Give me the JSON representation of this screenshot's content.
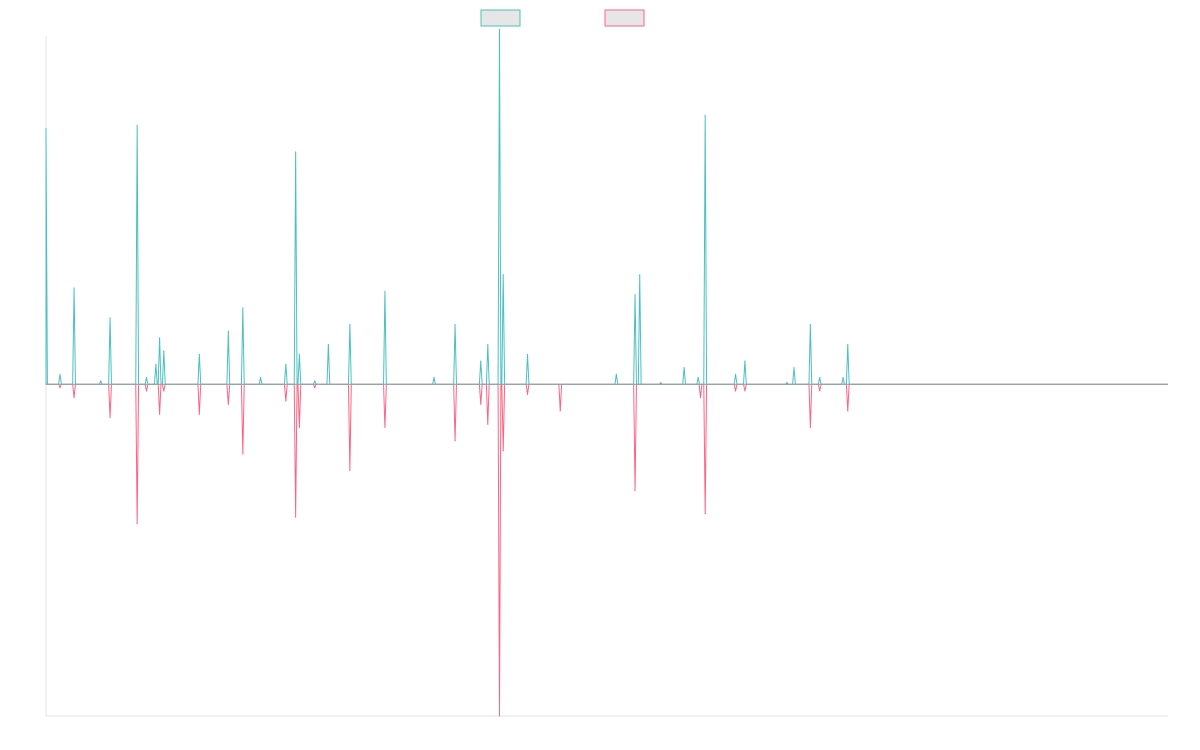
{
  "chart_data": {
    "type": "line",
    "legend": {
      "placement": "top-center",
      "entries": [
        "",
        ""
      ]
    },
    "grid": false,
    "x_range": [
      0,
      240
    ],
    "ylim": [
      -1,
      1.05
    ],
    "colors": {
      "series_a": "#4bc0c0",
      "series_b": "#ff6384",
      "baseline": "#8aa7b1",
      "legend_fill": "#e6e6e6"
    },
    "series": [
      {
        "color": "#4bc0c0",
        "spikes": [
          {
            "x": 0.0,
            "y": 0.77
          },
          {
            "x": 3.0,
            "y": 0.03
          },
          {
            "x": 6.0,
            "y": 0.29
          },
          {
            "x": 11.7,
            "y": 0.01
          },
          {
            "x": 13.7,
            "y": 0.2
          },
          {
            "x": 19.5,
            "y": 0.78
          },
          {
            "x": 21.5,
            "y": 0.02
          },
          {
            "x": 23.5,
            "y": 0.06
          },
          {
            "x": 24.3,
            "y": 0.14
          },
          {
            "x": 25.2,
            "y": 0.1
          },
          {
            "x": 32.8,
            "y": 0.09
          },
          {
            "x": 39.0,
            "y": 0.16
          },
          {
            "x": 42.1,
            "y": 0.23
          },
          {
            "x": 45.9,
            "y": 0.02
          },
          {
            "x": 51.3,
            "y": 0.06
          },
          {
            "x": 53.4,
            "y": 0.7
          },
          {
            "x": 54.2,
            "y": 0.09
          },
          {
            "x": 57.5,
            "y": 0.01
          },
          {
            "x": 60.4,
            "y": 0.12
          },
          {
            "x": 65.0,
            "y": 0.18
          },
          {
            "x": 72.5,
            "y": 0.28
          },
          {
            "x": 83.0,
            "y": 0.02
          },
          {
            "x": 87.5,
            "y": 0.18
          },
          {
            "x": 93.0,
            "y": 0.07
          },
          {
            "x": 94.5,
            "y": 0.12
          },
          {
            "x": 97.0,
            "y": 1.07
          },
          {
            "x": 97.8,
            "y": 0.33
          },
          {
            "x": 103.0,
            "y": 0.09
          },
          {
            "x": 122.0,
            "y": 0.03
          },
          {
            "x": 126.0,
            "y": 0.27
          },
          {
            "x": 127.0,
            "y": 0.33
          },
          {
            "x": 131.5,
            "y": 0.005
          },
          {
            "x": 136.5,
            "y": 0.05
          },
          {
            "x": 139.5,
            "y": 0.02
          },
          {
            "x": 141.0,
            "y": 0.81
          },
          {
            "x": 147.5,
            "y": 0.03
          },
          {
            "x": 149.5,
            "y": 0.07
          },
          {
            "x": 158.5,
            "y": 0.005
          },
          {
            "x": 160.0,
            "y": 0.05
          },
          {
            "x": 163.5,
            "y": 0.18
          },
          {
            "x": 165.5,
            "y": 0.02
          },
          {
            "x": 170.5,
            "y": 0.02
          },
          {
            "x": 171.5,
            "y": 0.12
          }
        ]
      },
      {
        "color": "#ff6384",
        "spikes": [
          {
            "x": 0.0,
            "y": 0.0
          },
          {
            "x": 3.0,
            "y": -0.01
          },
          {
            "x": 6.0,
            "y": -0.04
          },
          {
            "x": 13.7,
            "y": -0.1
          },
          {
            "x": 19.5,
            "y": -0.42
          },
          {
            "x": 21.5,
            "y": -0.02
          },
          {
            "x": 24.3,
            "y": -0.09
          },
          {
            "x": 25.2,
            "y": -0.02
          },
          {
            "x": 32.8,
            "y": -0.09
          },
          {
            "x": 39.0,
            "y": -0.06
          },
          {
            "x": 42.1,
            "y": -0.21
          },
          {
            "x": 51.3,
            "y": -0.05
          },
          {
            "x": 53.4,
            "y": -0.4
          },
          {
            "x": 54.2,
            "y": -0.13
          },
          {
            "x": 57.5,
            "y": -0.01
          },
          {
            "x": 65.0,
            "y": -0.26
          },
          {
            "x": 72.5,
            "y": -0.13
          },
          {
            "x": 87.5,
            "y": -0.17
          },
          {
            "x": 93.0,
            "y": -0.06
          },
          {
            "x": 94.5,
            "y": -0.12
          },
          {
            "x": 97.0,
            "y": -1.0
          },
          {
            "x": 97.8,
            "y": -0.2
          },
          {
            "x": 103.0,
            "y": -0.03
          },
          {
            "x": 110.0,
            "y": -0.08
          },
          {
            "x": 126.0,
            "y": -0.32
          },
          {
            "x": 140.0,
            "y": -0.04
          },
          {
            "x": 141.0,
            "y": -0.39
          },
          {
            "x": 147.5,
            "y": -0.02
          },
          {
            "x": 149.5,
            "y": -0.02
          },
          {
            "x": 163.5,
            "y": -0.13
          },
          {
            "x": 165.5,
            "y": -0.02
          },
          {
            "x": 171.5,
            "y": -0.08
          }
        ]
      }
    ]
  }
}
